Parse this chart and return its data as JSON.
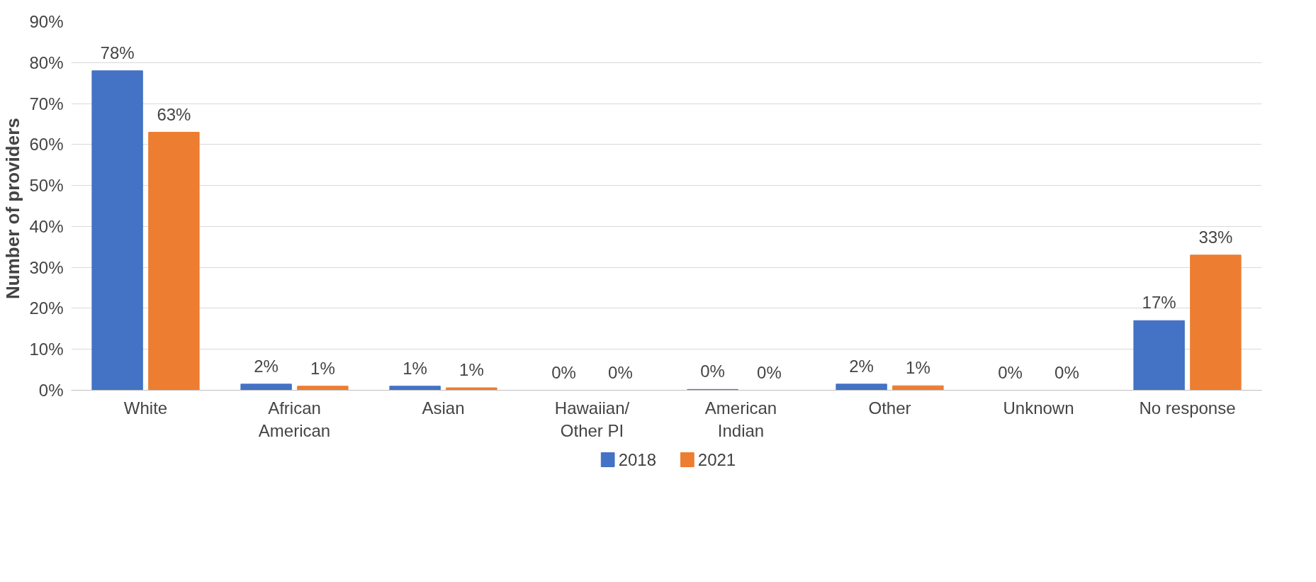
{
  "chart_data": {
    "type": "bar",
    "ylabel": "Number of  providers",
    "categories": [
      "White",
      "African\nAmerican",
      "Asian",
      "Hawaiian/\nOther PI",
      "American\nIndian",
      "Other",
      "Unknown",
      "No response"
    ],
    "series": [
      {
        "name": "2018",
        "color": "#4472c4",
        "values": [
          78,
          1.5,
          1,
          0,
          0.2,
          1.5,
          0,
          17
        ],
        "value_labels": [
          "78%",
          "2%",
          "1%",
          "0%",
          "0%",
          "2%",
          "0%",
          "17%"
        ]
      },
      {
        "name": "2021",
        "color": "#ed7d31",
        "values": [
          63,
          1,
          0.6,
          0,
          0,
          1.1,
          0,
          33
        ],
        "value_labels": [
          "63%",
          "1%",
          "1%",
          "0%",
          "0%",
          "1%",
          "0%",
          "33%"
        ]
      }
    ],
    "ylim": [
      0,
      90
    ],
    "yticks": [
      {
        "value": 0,
        "label": "0%"
      },
      {
        "value": 10,
        "label": "10%"
      },
      {
        "value": 20,
        "label": "20%"
      },
      {
        "value": 30,
        "label": "30%"
      },
      {
        "value": 40,
        "label": "40%"
      },
      {
        "value": 50,
        "label": "50%"
      },
      {
        "value": 60,
        "label": "60%"
      },
      {
        "value": 70,
        "label": "70%"
      },
      {
        "value": 80,
        "label": "80%"
      },
      {
        "value": 90,
        "label": "90%"
      }
    ],
    "grid": "y",
    "legend": "bottom"
  }
}
